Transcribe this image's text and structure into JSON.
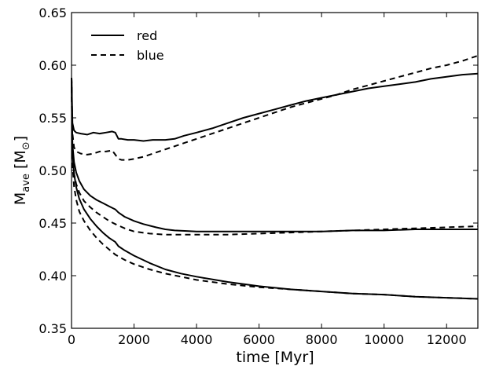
{
  "chart_data": {
    "type": "line",
    "title": "",
    "xlabel": "time [Myr]",
    "ylabel": {
      "main": "M",
      "sub": "ave",
      "unit_open": " [M",
      "unit_symbol": "⊙",
      "unit_close": "]"
    },
    "xlim": [
      0,
      13000
    ],
    "ylim": [
      0.35,
      0.65
    ],
    "xticks": [
      0,
      2000,
      4000,
      6000,
      8000,
      10000,
      12000
    ],
    "xtick_labels": [
      "0",
      "2000",
      "4000",
      "6000",
      "8000",
      "10000",
      "12000"
    ],
    "yticks": [
      0.35,
      0.4,
      0.45,
      0.5,
      0.55,
      0.6,
      0.65
    ],
    "ytick_labels": [
      "0.35",
      "0.40",
      "0.45",
      "0.50",
      "0.55",
      "0.60",
      "0.65"
    ],
    "grid": false,
    "legend": {
      "position": "top-left",
      "entries": [
        {
          "name": "red",
          "style": "solid"
        },
        {
          "name": "blue",
          "style": "dashed"
        }
      ]
    },
    "line_color": "#000000",
    "series": [
      {
        "name": "red",
        "group": "upper",
        "style": "solid",
        "x": [
          0,
          30,
          80,
          150,
          300,
          500,
          700,
          900,
          1100,
          1300,
          1400,
          1500,
          1600,
          1800,
          2000,
          2300,
          2600,
          3000,
          3300,
          3600,
          4000,
          4500,
          5000,
          5500,
          6000,
          6500,
          7000,
          7500,
          8000,
          8500,
          9000,
          9500,
          10000,
          10500,
          11000,
          11500,
          12000,
          12500,
          13000
        ],
        "y": [
          0.588,
          0.545,
          0.538,
          0.536,
          0.535,
          0.534,
          0.536,
          0.535,
          0.536,
          0.537,
          0.536,
          0.53,
          0.53,
          0.529,
          0.529,
          0.528,
          0.529,
          0.529,
          0.53,
          0.533,
          0.536,
          0.54,
          0.545,
          0.55,
          0.554,
          0.558,
          0.562,
          0.566,
          0.569,
          0.572,
          0.575,
          0.578,
          0.58,
          0.582,
          0.584,
          0.587,
          0.589,
          0.591,
          0.592
        ]
      },
      {
        "name": "blue",
        "group": "upper",
        "style": "dashed",
        "x": [
          0,
          30,
          80,
          150,
          300,
          500,
          700,
          900,
          1100,
          1300,
          1400,
          1500,
          1600,
          1800,
          2000,
          2300,
          2600,
          3000,
          3500,
          4000,
          4500,
          5000,
          5500,
          6000,
          6500,
          7000,
          7500,
          8000,
          8500,
          9000,
          9500,
          10000,
          10500,
          11000,
          11500,
          12000,
          12500,
          13000
        ],
        "y": [
          0.588,
          0.535,
          0.522,
          0.518,
          0.516,
          0.515,
          0.516,
          0.518,
          0.518,
          0.519,
          0.515,
          0.511,
          0.51,
          0.51,
          0.511,
          0.513,
          0.516,
          0.52,
          0.525,
          0.53,
          0.535,
          0.54,
          0.545,
          0.55,
          0.555,
          0.56,
          0.564,
          0.568,
          0.572,
          0.577,
          0.581,
          0.585,
          0.589,
          0.593,
          0.597,
          0.6,
          0.604,
          0.609
        ]
      },
      {
        "name": "red",
        "group": "middle",
        "style": "solid",
        "x": [
          0,
          30,
          80,
          150,
          250,
          400,
          600,
          800,
          1000,
          1200,
          1400,
          1500,
          1700,
          2000,
          2300,
          2700,
          3000,
          3300,
          4000,
          5000,
          6000,
          7000,
          8000,
          9000,
          10000,
          11000,
          12000,
          13000
        ],
        "y": [
          0.588,
          0.525,
          0.508,
          0.498,
          0.49,
          0.482,
          0.476,
          0.472,
          0.469,
          0.466,
          0.463,
          0.46,
          0.456,
          0.452,
          0.449,
          0.446,
          0.444,
          0.443,
          0.442,
          0.442,
          0.442,
          0.442,
          0.442,
          0.443,
          0.443,
          0.444,
          0.444,
          0.444
        ]
      },
      {
        "name": "blue",
        "group": "middle",
        "style": "dashed",
        "x": [
          0,
          30,
          80,
          150,
          250,
          400,
          600,
          800,
          1000,
          1200,
          1400,
          1700,
          2000,
          2500,
          3000,
          3500,
          4000,
          5000,
          6000,
          7000,
          8000,
          9000,
          10000,
          11000,
          12000,
          13000
        ],
        "y": [
          0.588,
          0.515,
          0.497,
          0.487,
          0.479,
          0.471,
          0.465,
          0.46,
          0.456,
          0.452,
          0.449,
          0.445,
          0.442,
          0.44,
          0.439,
          0.439,
          0.439,
          0.439,
          0.44,
          0.441,
          0.442,
          0.443,
          0.444,
          0.445,
          0.446,
          0.447
        ]
      },
      {
        "name": "red",
        "group": "lower",
        "style": "solid",
        "x": [
          0,
          30,
          80,
          150,
          250,
          400,
          600,
          800,
          1000,
          1200,
          1400,
          1500,
          1700,
          2000,
          2500,
          3000,
          3500,
          4000,
          5000,
          6000,
          7000,
          8000,
          9000,
          10000,
          11000,
          12000,
          13000
        ],
        "y": [
          0.588,
          0.515,
          0.497,
          0.484,
          0.473,
          0.463,
          0.454,
          0.447,
          0.441,
          0.436,
          0.432,
          0.428,
          0.424,
          0.419,
          0.412,
          0.406,
          0.402,
          0.399,
          0.394,
          0.39,
          0.387,
          0.385,
          0.383,
          0.382,
          0.38,
          0.379,
          0.378
        ]
      },
      {
        "name": "blue",
        "group": "lower",
        "style": "dashed",
        "x": [
          0,
          30,
          80,
          150,
          250,
          400,
          600,
          800,
          1000,
          1200,
          1400,
          1700,
          2000,
          2500,
          3000,
          3500,
          4000,
          5000,
          6000,
          7000,
          8000,
          9000,
          10000,
          11000,
          12000,
          13000
        ],
        "y": [
          0.588,
          0.505,
          0.485,
          0.472,
          0.461,
          0.452,
          0.443,
          0.436,
          0.43,
          0.425,
          0.42,
          0.415,
          0.411,
          0.406,
          0.402,
          0.399,
          0.396,
          0.392,
          0.389,
          0.387,
          0.385,
          0.383,
          0.382,
          0.38,
          0.379,
          0.378
        ]
      }
    ]
  }
}
